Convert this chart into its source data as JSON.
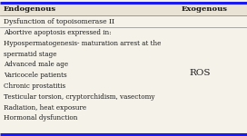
{
  "col1_header": "Endogenous",
  "col2_header": "Exogenous",
  "section1_header": "Dysfunction of topoisomerase II",
  "endogenous_items": [
    "Abortive apoptosis expressed in:",
    "Hypospermatogenesis- maturation arrest at the",
    "spermatid stage",
    "Advanced male age",
    "Varicocele patients",
    "Chronic prostatitis",
    "Testicular torsion, cryptorchidism, vasectomy",
    "Radiation, heat exposure",
    "Hormonal dysfunction"
  ],
  "exogenous_item": "ROS",
  "bg_color": "#f5f2ea",
  "header_bg": "#e8e3d5",
  "border_color": "#1a1aee",
  "text_color": "#1a1a1a",
  "line_color": "#888888",
  "header_line_color": "#333333",
  "figw": 2.72,
  "figh": 1.5,
  "dpi": 100
}
